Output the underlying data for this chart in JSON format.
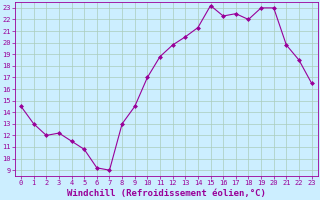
{
  "x": [
    0,
    1,
    2,
    3,
    4,
    5,
    6,
    7,
    8,
    9,
    10,
    11,
    12,
    13,
    14,
    15,
    16,
    17,
    18,
    19,
    20,
    21,
    22,
    23
  ],
  "y": [
    14.5,
    13.0,
    12.0,
    12.2,
    11.5,
    10.8,
    9.2,
    9.0,
    13.0,
    14.5,
    17.0,
    18.8,
    19.8,
    20.5,
    21.3,
    23.2,
    22.3,
    22.5,
    22.0,
    23.0,
    23.0,
    19.8,
    18.5,
    16.5
  ],
  "line_color": "#990099",
  "marker": "D",
  "marker_size": 2,
  "bg_color": "#cceeff",
  "grid_color": "#aaccbb",
  "xlabel": "Windchill (Refroidissement éolien,°C)",
  "xlabel_fontsize": 6.5,
  "xtick_labels": [
    "0",
    "1",
    "2",
    "3",
    "4",
    "5",
    "6",
    "7",
    "8",
    "9",
    "10",
    "11",
    "12",
    "13",
    "14",
    "15",
    "16",
    "17",
    "18",
    "19",
    "20",
    "21",
    "22",
    "23"
  ],
  "ytick_min": 9,
  "ytick_max": 23,
  "ytick_step": 1,
  "xlim": [
    -0.5,
    23.5
  ],
  "ylim": [
    8.5,
    23.5
  ],
  "tick_fontsize": 5.0
}
